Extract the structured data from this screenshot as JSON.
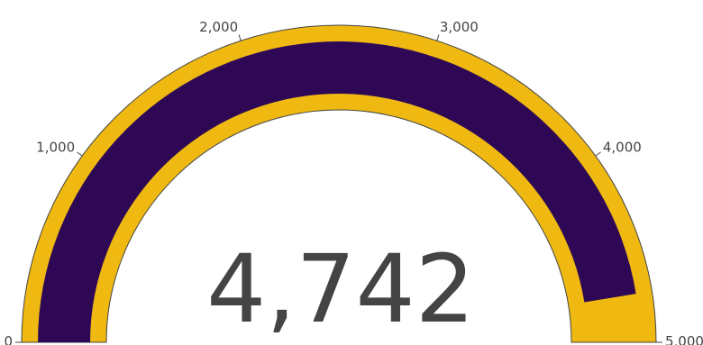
{
  "chart_data": {
    "type": "gauge",
    "value": 4742,
    "value_label": "4,742",
    "range": [
      0,
      5000
    ],
    "ticks": [
      0,
      1000,
      2000,
      3000,
      4000,
      5000
    ],
    "tick_labels": [
      "0",
      "1,000",
      "2,000",
      "3,000",
      "4,000",
      "5,000"
    ],
    "colors": {
      "gauge_background": "#efb912",
      "value_bar": "#2e0854",
      "outline": "#444444",
      "text": "#444444"
    }
  }
}
